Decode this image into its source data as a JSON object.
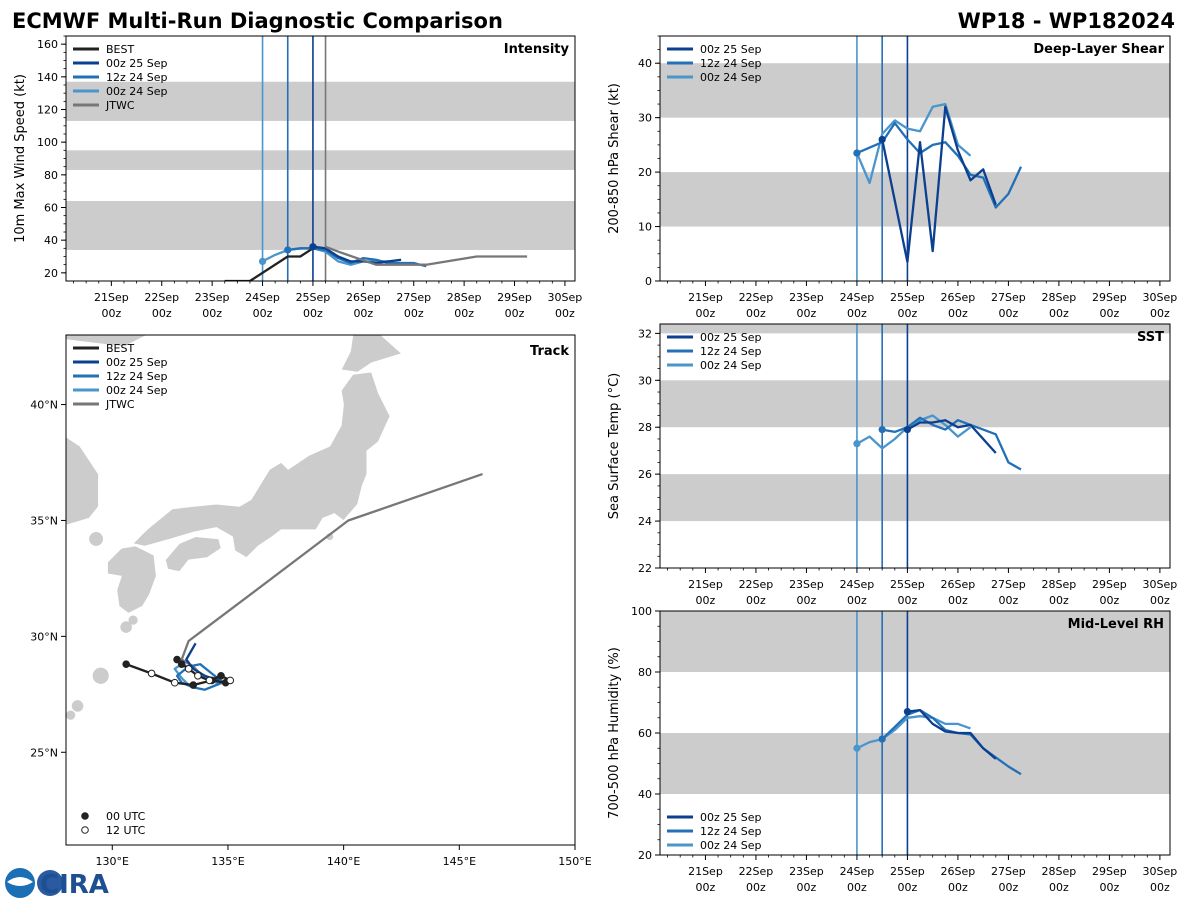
{
  "header": {
    "left_title": "ECMWF Multi-Run Diagnostic Comparison",
    "right_title": "WP18 - WP182024"
  },
  "logo": {
    "text": "CIRA"
  },
  "colors": {
    "BEST": "#222222",
    "00z 25 Sep": "#0b3f8f",
    "12z 24 Sep": "#2370b6",
    "00z 24 Sep": "#4a95cc",
    "JTWC": "#777777",
    "band": "#cccccc",
    "land": "#cccccc"
  },
  "time_axis": {
    "ticks": [
      {
        "day": 21,
        "label1": "21Sep",
        "label2": "00z"
      },
      {
        "day": 22,
        "label1": "22Sep",
        "label2": "00z"
      },
      {
        "day": 23,
        "label1": "23Sep",
        "label2": "00z"
      },
      {
        "day": 24,
        "label1": "24Sep",
        "label2": "00z"
      },
      {
        "day": 25,
        "label1": "25Sep",
        "label2": "00z"
      },
      {
        "day": 26,
        "label1": "26Sep",
        "label2": "00z"
      },
      {
        "day": 27,
        "label1": "27Sep",
        "label2": "00z"
      },
      {
        "day": 28,
        "label1": "28Sep",
        "label2": "00z"
      },
      {
        "day": 29,
        "label1": "29Sep",
        "label2": "00z"
      },
      {
        "day": 30,
        "label1": "30Sep",
        "label2": "00z"
      }
    ],
    "range": [
      20.1,
      30.2
    ]
  },
  "chart_data": [
    {
      "id": "intensity",
      "type": "line",
      "title": "Intensity",
      "ylabel": "10m Max Wind Speed (kt)",
      "ylim": [
        15,
        165
      ],
      "yticks": [
        20,
        40,
        60,
        80,
        100,
        120,
        140,
        160
      ],
      "bands": [
        [
          34,
          64
        ],
        [
          83,
          95
        ],
        [
          113,
          137
        ]
      ],
      "init_lines": [
        {
          "name": "00z 24 Sep",
          "x": 24.0
        },
        {
          "name": "12z 24 Sep",
          "x": 24.5
        },
        {
          "name": "00z 25 Sep",
          "x": 25.0
        },
        {
          "name": "JTWC",
          "x": 25.25
        }
      ],
      "legend": [
        "BEST",
        "00z 25 Sep",
        "12z 24 Sep",
        "00z 24 Sep",
        "JTWC"
      ],
      "series": [
        {
          "name": "BEST",
          "x": [
            23.25,
            23.75,
            24.5,
            24.75,
            25.0,
            25.25
          ],
          "y": [
            15,
            15,
            30,
            30,
            35,
            35
          ]
        },
        {
          "name": "00z 24 Sep",
          "x": [
            24.0,
            24.25,
            24.5,
            24.75,
            25.0,
            25.25,
            25.5,
            25.75,
            26.0,
            26.25,
            26.5
          ],
          "y": [
            27,
            31,
            34,
            35,
            35,
            33,
            27,
            25,
            27,
            27,
            27
          ]
        },
        {
          "name": "12z 24 Sep",
          "x": [
            24.5,
            24.75,
            25.0,
            25.25,
            25.5,
            25.75,
            26.0,
            26.25,
            26.5,
            26.75,
            27.0,
            27.25
          ],
          "y": [
            34,
            35,
            35,
            34,
            29,
            26,
            29,
            28,
            26,
            26,
            26,
            24
          ]
        },
        {
          "name": "00z 25 Sep",
          "x": [
            25.0,
            25.25,
            25.5,
            25.75,
            26.0,
            26.25,
            26.5,
            26.75
          ],
          "y": [
            36,
            35,
            30,
            27,
            27,
            26,
            27,
            28
          ]
        },
        {
          "name": "JTWC",
          "x": [
            25.25,
            25.5,
            26.25,
            27.25,
            28.25,
            29.25
          ],
          "y": [
            36,
            33,
            25,
            25,
            30,
            30
          ]
        }
      ]
    },
    {
      "id": "shear",
      "type": "line",
      "title": "Deep-Layer Shear",
      "ylabel": "200-850 hPa Shear (kt)",
      "ylim": [
        0,
        45
      ],
      "yticks": [
        0,
        10,
        20,
        30,
        40
      ],
      "bands": [
        [
          10,
          20
        ],
        [
          30,
          40
        ]
      ],
      "init_lines": [
        {
          "name": "00z 24 Sep",
          "x": 24.0
        },
        {
          "name": "12z 24 Sep",
          "x": 24.5
        },
        {
          "name": "00z 25 Sep",
          "x": 25.0
        }
      ],
      "legend": [
        "00z 25 Sep",
        "12z 24 Sep",
        "00z 24 Sep"
      ],
      "series": [
        {
          "name": "00z 24 Sep",
          "x": [
            24.0,
            24.25,
            24.5,
            24.75,
            25.0,
            25.25,
            25.5,
            25.75,
            26.0,
            26.25
          ],
          "y": [
            23.5,
            18,
            27,
            29.5,
            28,
            27.5,
            32,
            32.5,
            25,
            23
          ]
        },
        {
          "name": "12z 24 Sep",
          "x": [
            24.0,
            24.5,
            24.75,
            25.0,
            25.25,
            25.5,
            25.75,
            26.0,
            26.25,
            26.5,
            26.75,
            27.0,
            27.25
          ],
          "y": [
            23.5,
            25.5,
            29,
            26,
            23.5,
            25,
            25.5,
            23,
            19.5,
            19,
            13.5,
            16,
            21
          ]
        },
        {
          "name": "00z 25 Sep",
          "x": [
            24.5,
            25.0,
            25.25,
            25.5,
            25.75,
            26.0,
            26.25,
            26.5,
            26.75
          ],
          "y": [
            26,
            3.5,
            25.5,
            5.5,
            32,
            24,
            18.5,
            20.5,
            14
          ]
        }
      ]
    },
    {
      "id": "sst",
      "type": "line",
      "title": "SST",
      "ylabel": "Sea Surface Temp (°C)",
      "ylim": [
        22,
        32.4
      ],
      "yticks": [
        22,
        24,
        26,
        28,
        30,
        32
      ],
      "bands": [
        [
          24,
          26
        ],
        [
          28,
          30
        ],
        [
          32,
          34
        ]
      ],
      "init_lines": [
        {
          "name": "00z 24 Sep",
          "x": 24.0
        },
        {
          "name": "12z 24 Sep",
          "x": 24.5
        },
        {
          "name": "00z 25 Sep",
          "x": 25.0
        }
      ],
      "legend": [
        "00z 25 Sep",
        "12z 24 Sep",
        "00z 24 Sep"
      ],
      "series": [
        {
          "name": "00z 24 Sep",
          "x": [
            24.0,
            24.25,
            24.5,
            24.75,
            25.0,
            25.25,
            25.5,
            25.75,
            26.0,
            26.25
          ],
          "y": [
            27.3,
            27.6,
            27.1,
            27.5,
            28.0,
            28.3,
            28.5,
            28.1,
            27.6,
            28.0
          ]
        },
        {
          "name": "12z 24 Sep",
          "x": [
            24.5,
            24.75,
            25.0,
            25.25,
            25.5,
            25.75,
            26.0,
            26.25,
            26.5,
            26.75,
            27.0,
            27.25
          ],
          "y": [
            27.9,
            27.8,
            28.0,
            28.4,
            28.1,
            27.9,
            28.3,
            28.1,
            27.9,
            27.7,
            26.5,
            26.2
          ]
        },
        {
          "name": "00z 25 Sep",
          "x": [
            25.0,
            25.25,
            25.5,
            25.75,
            26.0,
            26.25,
            26.5,
            26.75
          ],
          "y": [
            27.9,
            28.2,
            28.2,
            28.3,
            28.0,
            28.1,
            27.5,
            26.9
          ]
        }
      ]
    },
    {
      "id": "rh",
      "type": "line",
      "title": "Mid-Level RH",
      "ylabel": "700-500 hPa Humidity (%)",
      "ylim": [
        20,
        100
      ],
      "yticks": [
        20,
        40,
        60,
        80,
        100
      ],
      "bands": [
        [
          40,
          60
        ],
        [
          80,
          100
        ]
      ],
      "init_lines": [
        {
          "name": "00z 24 Sep",
          "x": 24.0
        },
        {
          "name": "12z 24 Sep",
          "x": 24.5
        },
        {
          "name": "00z 25 Sep",
          "x": 25.0
        }
      ],
      "legend": [
        "00z 25 Sep",
        "12z 24 Sep",
        "00z 24 Sep"
      ],
      "series": [
        {
          "name": "00z 24 Sep",
          "x": [
            24.0,
            24.25,
            24.5,
            24.75,
            25.0,
            25.25,
            25.5,
            25.75,
            26.0,
            26.25
          ],
          "y": [
            55,
            57,
            58,
            61,
            65,
            65.5,
            65,
            63,
            63,
            61.5
          ]
        },
        {
          "name": "12z 24 Sep",
          "x": [
            24.5,
            24.75,
            25.0,
            25.25,
            25.5,
            25.75,
            26.0,
            26.25,
            26.5,
            26.75,
            27.0,
            27.25
          ],
          "y": [
            58,
            62,
            66,
            67.5,
            65,
            61,
            60,
            59.5,
            55,
            52,
            49,
            46.5
          ]
        },
        {
          "name": "00z 25 Sep",
          "x": [
            25.0,
            25.25,
            25.5,
            25.75,
            26.0,
            26.25,
            26.5,
            26.75
          ],
          "y": [
            67,
            67.5,
            63,
            60.5,
            60,
            60,
            55,
            51.5
          ]
        }
      ]
    },
    {
      "id": "track",
      "type": "scatter",
      "title": "Track",
      "lon_range": [
        128,
        150
      ],
      "lat_range": [
        21,
        43
      ],
      "xticks": [
        {
          "v": 130,
          "label": "130°E"
        },
        {
          "v": 135,
          "label": "135°E"
        },
        {
          "v": 140,
          "label": "140°E"
        },
        {
          "v": 145,
          "label": "145°E"
        },
        {
          "v": 150,
          "label": "150°E"
        }
      ],
      "yticks": [
        {
          "v": 25,
          "label": "25°N"
        },
        {
          "v": 30,
          "label": "30°N"
        },
        {
          "v": 35,
          "label": "35°N"
        },
        {
          "v": 40,
          "label": "40°N"
        }
      ],
      "legend": [
        "BEST",
        "00z 25 Sep",
        "12z 24 Sep",
        "00z 24 Sep",
        "JTWC"
      ],
      "marker_legend": [
        "00 UTC",
        "12 UTC"
      ],
      "series": [
        {
          "name": "JTWC",
          "lon": [
            134.0,
            133.5,
            133.0,
            133.3,
            135.3,
            140.2,
            146.0
          ],
          "lat": [
            28.2,
            28.7,
            29.0,
            29.8,
            31.3,
            35.0,
            37.0
          ],
          "mk": []
        },
        {
          "name": "00z 24 Sep",
          "lon": [
            135.0,
            134.5,
            134.0,
            133.5,
            133.0,
            132.7,
            133.0,
            133.3
          ],
          "lat": [
            28.1,
            28.0,
            28.3,
            28.6,
            28.8,
            28.6,
            28.2,
            27.9
          ],
          "mk": []
        },
        {
          "name": "12z 24 Sep",
          "lon": [
            134.8,
            134.3,
            133.8,
            133.3,
            132.8,
            133.0,
            133.5,
            134.0,
            134.5,
            135.0
          ],
          "lat": [
            28.0,
            28.4,
            28.8,
            28.7,
            28.3,
            28.0,
            27.8,
            27.7,
            27.9,
            28.1
          ],
          "mk": []
        },
        {
          "name": "00z 25 Sep",
          "lon": [
            134.6,
            134.0,
            133.5,
            133.2,
            133.6
          ],
          "lat": [
            28.1,
            28.3,
            28.6,
            29.0,
            29.7
          ],
          "mk": []
        },
        {
          "name": "BEST",
          "lon": [
            130.6,
            131.7,
            132.7,
            133.5,
            134.3,
            134.9,
            135.1,
            134.7,
            134.2,
            133.7,
            133.3,
            133.0,
            132.8
          ],
          "lat": [
            28.8,
            28.4,
            28.0,
            27.9,
            28.1,
            28.0,
            28.1,
            28.3,
            28.1,
            28.3,
            28.6,
            28.8,
            29.0
          ],
          "mk": [
            "f",
            "o",
            "o",
            "f",
            "f",
            "f",
            "o",
            "f",
            "o",
            "o",
            "o",
            "f",
            "f"
          ]
        }
      ]
    }
  ]
}
